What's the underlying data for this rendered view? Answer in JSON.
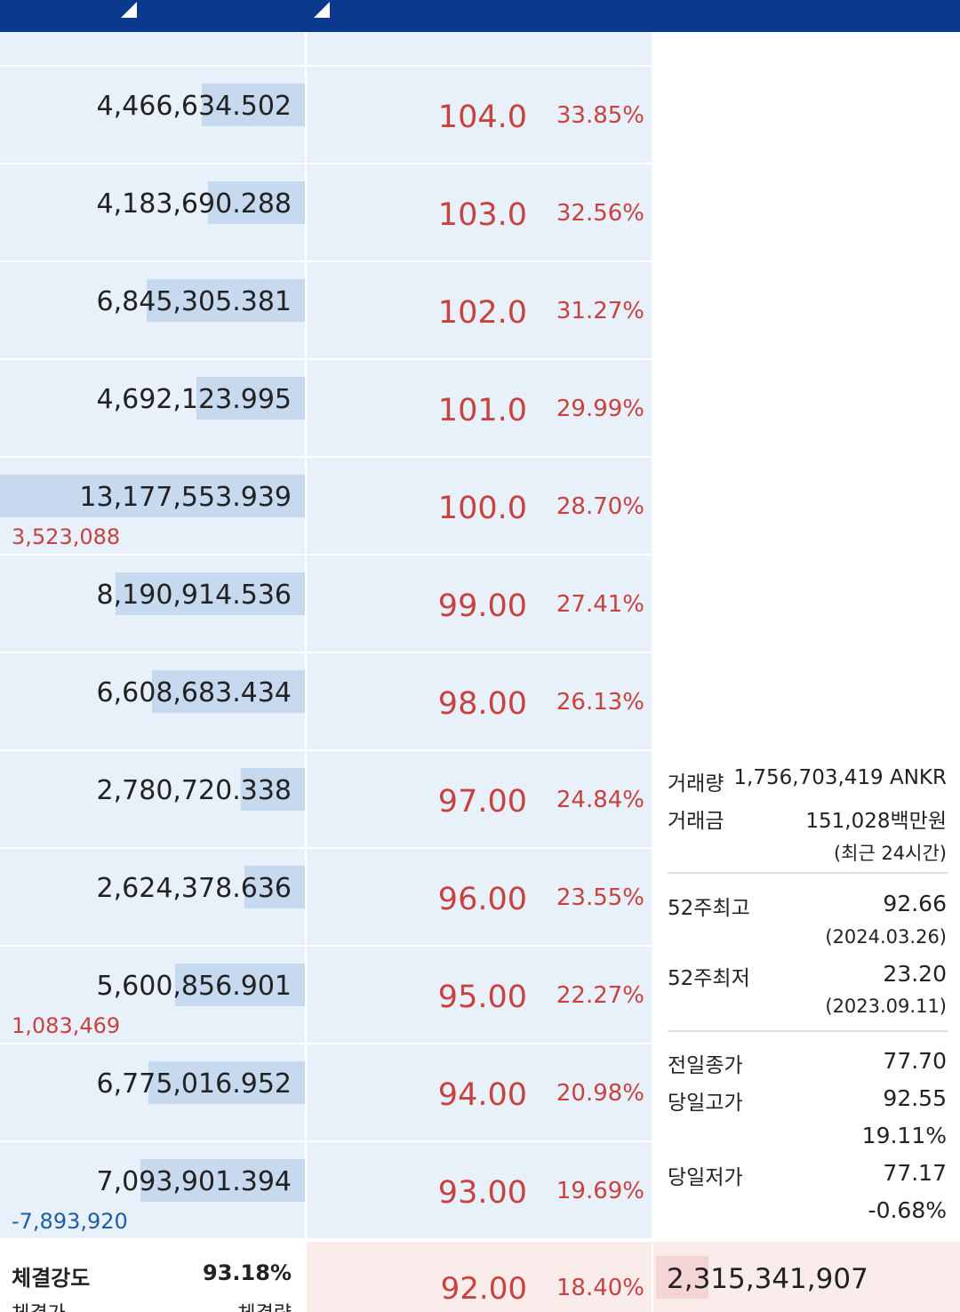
{
  "orderbook": {
    "rows": [
      {
        "volume": {
          "value": 4466634.502,
          "label": "4,466,634.502"
        },
        "price": "104.0",
        "change_rate": "33.85%"
      },
      {
        "volume": {
          "value": 4183690.288,
          "label": "4,183,690.288"
        },
        "price": "103.0",
        "change_rate": "32.56%"
      },
      {
        "volume": {
          "value": 6845305.381,
          "label": "6,845,305.381"
        },
        "price": "102.0",
        "change_rate": "31.27%"
      },
      {
        "volume": {
          "value": 4692123.995,
          "label": "4,692,123.995"
        },
        "price": "101.0",
        "change_rate": "29.99%"
      },
      {
        "volume": {
          "value": 13177553.939,
          "label": "13,177,553.939"
        },
        "price": "100.0",
        "change_rate": "28.70%",
        "change": "3,523,088",
        "change_color": "#c8423f"
      },
      {
        "volume": {
          "value": 8190914.536,
          "label": "8,190,914.536"
        },
        "price": "99.00",
        "change_rate": "27.41%"
      },
      {
        "volume": {
          "value": 6608683.434,
          "label": "6,608,683.434"
        },
        "price": "98.00",
        "change_rate": "26.13%"
      },
      {
        "volume": {
          "value": 2780720.338,
          "label": "2,780,720.338"
        },
        "price": "97.00",
        "change_rate": "24.84%"
      },
      {
        "volume": {
          "value": 2624378.636,
          "label": "2,624,378.636"
        },
        "price": "96.00",
        "change_rate": "23.55%"
      },
      {
        "volume": {
          "value": 5600856.901,
          "label": "5,600,856.901"
        },
        "price": "95.00",
        "change_rate": "22.27%",
        "change": "1,083,469",
        "change_color": "#c8423f"
      },
      {
        "volume": {
          "value": 6775016.952,
          "label": "6,775,016.952"
        },
        "price": "94.00",
        "change_rate": "20.98%"
      },
      {
        "volume": {
          "value": 7093901.394,
          "label": "7,093,901.394"
        },
        "price": "93.00",
        "change_rate": "19.69%",
        "change": "-7,893,920",
        "change_color": "#1a5fa8"
      }
    ],
    "current": {
      "strength_label": "체결강도",
      "strength": "93.18%",
      "price_label": "체결가",
      "qty_label": "체결량",
      "price": "92.00",
      "change_rate": "18.40%",
      "volume": "2,315,341,907"
    }
  },
  "info": {
    "volume_label": "거래량",
    "volume": "1,756,703,419 ANKR",
    "amount_label": "거래금",
    "amount": "151,028백만원",
    "period": "(최근 24시간)",
    "high52_label": "52주최고",
    "high52": "92.66",
    "high52_date": "(2024.03.26)",
    "low52_label": "52주최저",
    "low52": "23.20",
    "low52_date": "(2023.09.11)",
    "prev_close_label": "전일종가",
    "prev_close": "77.70",
    "day_high_label": "당일고가",
    "day_high": "92.55",
    "day_high_rate": "19.11%",
    "day_low_label": "당일저가",
    "day_low": "77.17",
    "day_low_rate": "-0.68%"
  }
}
